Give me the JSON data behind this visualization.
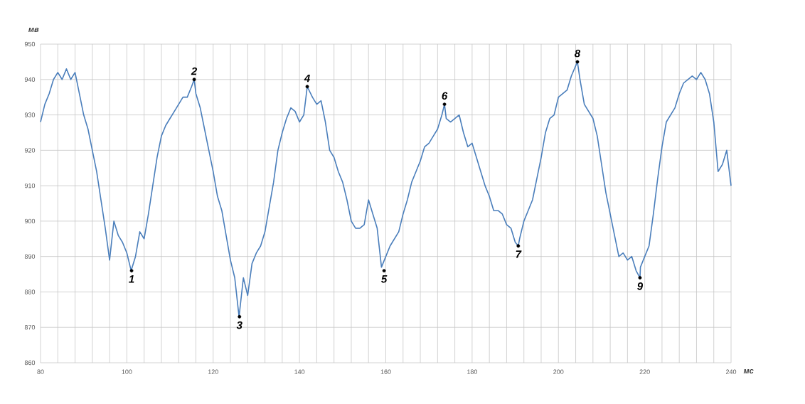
{
  "chart_data": {
    "type": "line",
    "xlabel": "мс",
    "ylabel": "мв",
    "xlim": [
      80,
      240
    ],
    "ylim": [
      860,
      950
    ],
    "xticks": [
      80,
      {
        "value": 84,
        "label": null
      },
      {
        "value": 88,
        "label": null
      },
      {
        "value": 92,
        "label": null
      },
      {
        "value": 96,
        "label": null
      },
      100,
      {
        "value": 104,
        "label": null
      },
      {
        "value": 108,
        "label": null
      },
      {
        "value": 112,
        "label": null
      },
      {
        "value": 116,
        "label": null
      },
      120,
      {
        "value": 124,
        "label": null
      },
      {
        "value": 128,
        "label": null
      },
      {
        "value": 132,
        "label": null
      },
      {
        "value": 136,
        "label": null
      },
      140,
      {
        "value": 144,
        "label": null
      },
      {
        "value": 148,
        "label": null
      },
      {
        "value": 152,
        "label": null
      },
      {
        "value": 156,
        "label": null
      },
      160,
      {
        "value": 164,
        "label": null
      },
      {
        "value": 168,
        "label": null
      },
      {
        "value": 172,
        "label": null
      },
      {
        "value": 176,
        "label": null
      },
      180,
      {
        "value": 184,
        "label": null
      },
      {
        "value": 188,
        "label": null
      },
      {
        "value": 192,
        "label": null
      },
      {
        "value": 196,
        "label": null
      },
      200,
      {
        "value": 204,
        "label": null
      },
      {
        "value": 208,
        "label": null
      },
      {
        "value": 212,
        "label": null
      },
      {
        "value": 216,
        "label": null
      },
      220,
      {
        "value": 224,
        "label": null
      },
      {
        "value": 228,
        "label": null
      },
      {
        "value": 232,
        "label": null
      },
      {
        "value": 236,
        "label": null
      },
      240
    ],
    "yticks": [
      860,
      870,
      880,
      890,
      900,
      910,
      920,
      930,
      940,
      950
    ],
    "grid": true,
    "series": [
      {
        "color": "#4a7ebb",
        "x": [
          80,
          81,
          82,
          83,
          84,
          85,
          86,
          87,
          88,
          89,
          90,
          91,
          92,
          93,
          94,
          95,
          96,
          97,
          98,
          99,
          100,
          101,
          102,
          103,
          104,
          105,
          106,
          107,
          108,
          109,
          110,
          111,
          112,
          113,
          114,
          115,
          115.6,
          116,
          117,
          118,
          119,
          120,
          121,
          122,
          123,
          124,
          125,
          126,
          127,
          128,
          129,
          130,
          131,
          132,
          133,
          134,
          135,
          136,
          137,
          138,
          139,
          140,
          141,
          141.8,
          143,
          144,
          145,
          146,
          147,
          148,
          149,
          150,
          151,
          152,
          153,
          154,
          155,
          156,
          157,
          158,
          159,
          160,
          161,
          162,
          163,
          164,
          165,
          166,
          167,
          168,
          169,
          170,
          171,
          172,
          173,
          173.6,
          174,
          175,
          176,
          177,
          178,
          179,
          180,
          181,
          182,
          183,
          184,
          185,
          186,
          187,
          188,
          189,
          190,
          190.7,
          191,
          192,
          193,
          194,
          195,
          196,
          197,
          198,
          199,
          200,
          201,
          202,
          203,
          204.4,
          205,
          206,
          207,
          208,
          209,
          210,
          211,
          212,
          213,
          214,
          215,
          216,
          217,
          218,
          218.9,
          219,
          220,
          221,
          222,
          223,
          224,
          225,
          226,
          227,
          228,
          229,
          230,
          231,
          232,
          233,
          234,
          235,
          236,
          237,
          238,
          239,
          240
        ],
        "values": [
          928,
          933,
          936,
          940,
          942,
          940,
          943,
          940,
          942,
          936,
          930,
          926,
          920,
          914,
          906,
          898,
          889,
          900,
          896,
          894,
          891,
          886,
          890,
          897,
          895,
          902,
          910,
          918,
          924,
          927,
          929,
          931,
          933,
          935,
          935,
          938,
          940,
          936,
          932,
          926,
          920,
          914,
          907,
          903,
          896,
          889,
          884,
          873,
          884,
          879,
          888,
          891,
          893,
          897,
          904,
          911,
          920,
          925,
          929,
          932,
          931,
          928,
          930,
          938,
          935,
          933,
          934,
          928,
          920,
          918,
          914,
          911,
          906,
          900,
          898,
          898,
          899,
          906,
          902,
          898,
          887,
          890,
          893,
          895,
          897,
          902,
          906,
          911,
          914,
          917,
          921,
          922,
          924,
          926,
          930,
          933,
          929,
          928,
          929,
          930,
          925,
          921,
          922,
          918,
          914,
          910,
          907,
          903,
          903,
          902,
          899,
          898,
          894,
          893,
          895,
          900,
          903,
          906,
          912,
          918,
          925,
          929,
          930,
          935,
          936,
          937,
          941,
          945,
          940,
          933,
          931,
          929,
          924,
          916,
          908,
          902,
          896,
          890,
          891,
          889,
          890,
          886,
          884,
          887,
          890,
          893,
          902,
          912,
          921,
          928,
          930,
          932,
          936,
          939,
          940,
          941,
          940,
          942,
          940,
          936,
          928,
          914,
          916,
          920,
          910
        ]
      }
    ],
    "annotations": [
      {
        "text": "1",
        "x": 101.1,
        "y": 886
      },
      {
        "text": "2",
        "x": 115.6,
        "y": 940
      },
      {
        "text": "3",
        "x": 126.1,
        "y": 873
      },
      {
        "text": "4",
        "x": 141.8,
        "y": 938
      },
      {
        "text": "5",
        "x": 159.6,
        "y": 886
      },
      {
        "text": "6",
        "x": 173.6,
        "y": 933
      },
      {
        "text": "7",
        "x": 190.7,
        "y": 893
      },
      {
        "text": "8",
        "x": 204.4,
        "y": 945
      },
      {
        "text": "9",
        "x": 218.9,
        "y": 884
      }
    ]
  }
}
